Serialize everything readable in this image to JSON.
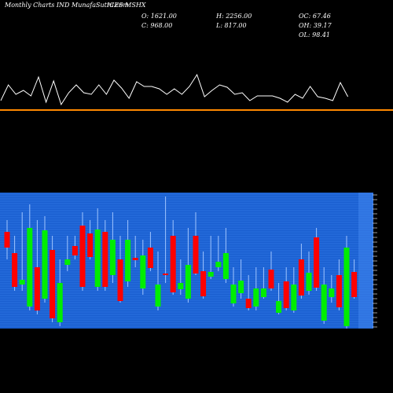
{
  "header": {
    "site": "Monthly Charts IND  MunafaSutra.com",
    "symbol": "ICES MSHX",
    "stats": [
      "O: 1621.00",
      "H: 2256.00",
      "OC: 67.46",
      "C: 968.00",
      "L: 817.00",
      "OH: 39.17",
      "OL: 98.41"
    ]
  },
  "chart_data": [
    {
      "type": "line",
      "color": "#ffffff",
      "ylim": [
        0,
        50
      ],
      "values": [
        17,
        37,
        25,
        30,
        23,
        47,
        15,
        42,
        12,
        27,
        37,
        27,
        25,
        37,
        25,
        43,
        33,
        20,
        41,
        35,
        35,
        32,
        25,
        32,
        25,
        35,
        50,
        22,
        30,
        37,
        34,
        25,
        27,
        17,
        23,
        23,
        23,
        20,
        15,
        25,
        20,
        35,
        22,
        20,
        17,
        40,
        22
      ]
    },
    {
      "type": "candlestick",
      "up_color": "#00ee00",
      "down_color": "#ff0000",
      "ylim": [
        0,
        173
      ],
      "open": [
        123,
        96,
        56,
        28,
        78,
        38,
        100,
        8,
        81,
        105,
        131,
        121,
        53,
        123,
        68,
        88,
        60,
        90,
        51,
        103,
        28,
        70,
        118,
        50,
        38,
        118,
        73,
        66,
        78,
        63,
        32,
        45,
        38,
        28,
        40,
        75,
        20,
        60,
        23,
        88,
        48,
        116,
        10,
        40,
        68,
        3,
        72
      ],
      "high": [
        138,
        118,
        148,
        158,
        138,
        143,
        118,
        88,
        118,
        118,
        148,
        138,
        153,
        138,
        148,
        118,
        138,
        118,
        113,
        123,
        98,
        168,
        138,
        88,
        128,
        148,
        98,
        118,
        118,
        128,
        78,
        88,
        68,
        78,
        78,
        98,
        58,
        78,
        78,
        108,
        98,
        128,
        78,
        68,
        88,
        118,
        88
      ],
      "low": [
        88,
        48,
        48,
        23,
        18,
        33,
        8,
        3,
        73,
        88,
        48,
        88,
        48,
        48,
        58,
        33,
        53,
        78,
        43,
        73,
        23,
        58,
        43,
        43,
        33,
        68,
        38,
        63,
        73,
        58,
        28,
        38,
        23,
        23,
        38,
        48,
        18,
        23,
        20,
        38,
        43,
        48,
        6,
        33,
        23,
        0,
        38
      ],
      "close": [
        103,
        53,
        62,
        128,
        23,
        125,
        13,
        58,
        88,
        93,
        53,
        91,
        126,
        53,
        113,
        35,
        113,
        87,
        93,
        77,
        56,
        68,
        46,
        58,
        81,
        70,
        41,
        72,
        85,
        96,
        56,
        61,
        26,
        51,
        51,
        51,
        35,
        26,
        56,
        42,
        71,
        52,
        56,
        51,
        27,
        103,
        40
      ]
    }
  ]
}
